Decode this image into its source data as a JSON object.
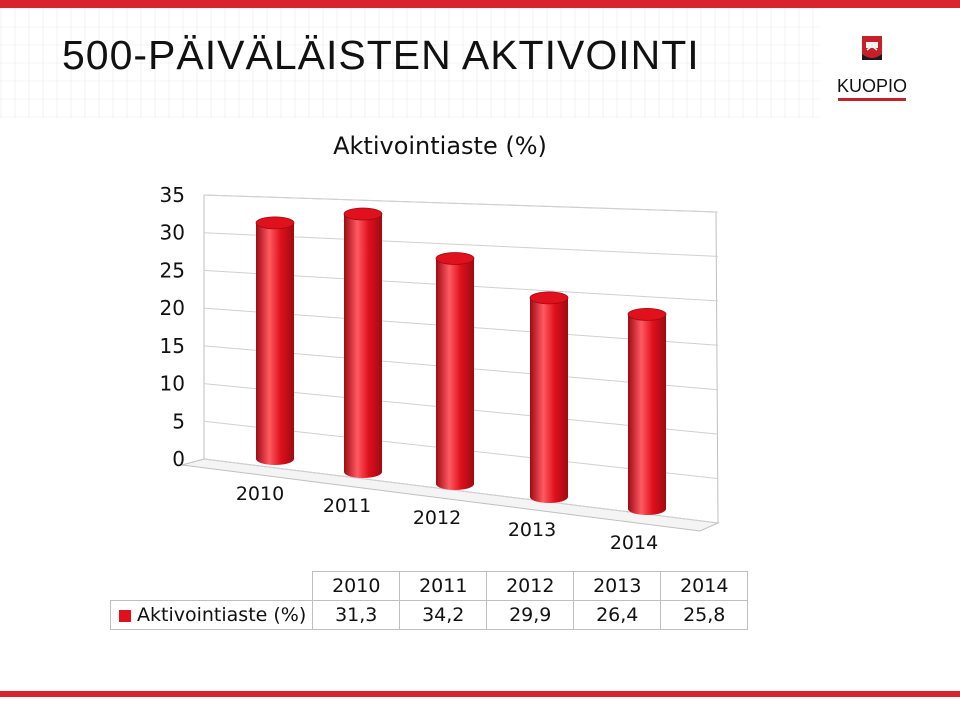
{
  "header": {
    "title": "500-PÄIVÄLÄISTEN AKTIVOINTI",
    "logo_text": "KUOPIO"
  },
  "colors": {
    "accent": "#d9232e",
    "bar": "#e0101c",
    "bar_dark": "#9e0a12",
    "bar_light": "#ff5a62",
    "text": "#111111"
  },
  "chart_data": {
    "type": "bar",
    "style": "3d-cylinder",
    "title": "Aktivointiaste (%)",
    "categories": [
      "2010",
      "2011",
      "2012",
      "2013",
      "2014"
    ],
    "series": [
      {
        "name": "Aktivointiaste (%)",
        "values": [
          31.3,
          34.2,
          29.9,
          26.4,
          25.8
        ]
      }
    ],
    "value_labels": [
      "31,3",
      "34,2",
      "29,9",
      "26,4",
      "25,8"
    ],
    "yticks": [
      "0",
      "5",
      "10",
      "15",
      "20",
      "25",
      "30",
      "35"
    ],
    "ylim": [
      0,
      35
    ],
    "grid": true,
    "legend": "data-table"
  }
}
